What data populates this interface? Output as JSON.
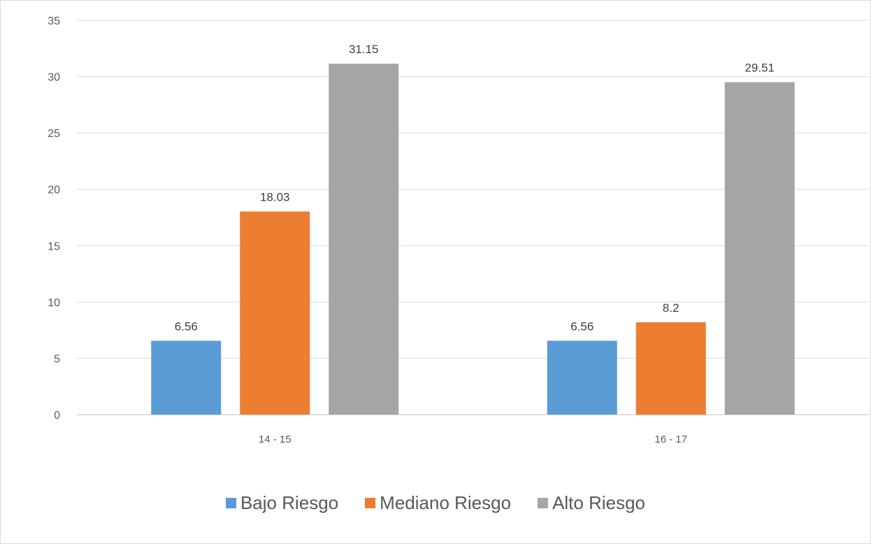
{
  "chart_data": {
    "type": "bar",
    "title": "",
    "xlabel": "",
    "ylabel": "",
    "categories": [
      "14 - 15",
      "16 - 17"
    ],
    "series": [
      {
        "name": "Bajo Riesgo",
        "color": "#5b9bd5",
        "values": [
          6.56,
          6.56
        ]
      },
      {
        "name": "Mediano Riesgo",
        "color": "#ed7d31",
        "values": [
          18.03,
          8.2
        ]
      },
      {
        "name": "Alto Riesgo",
        "color": "#a5a5a5",
        "values": [
          31.15,
          29.51
        ]
      }
    ],
    "ylim": [
      0,
      35
    ],
    "yticks": [
      0,
      5,
      10,
      15,
      20,
      25,
      30,
      35
    ],
    "grid": true,
    "data_labels": true,
    "legend_position": "bottom"
  }
}
